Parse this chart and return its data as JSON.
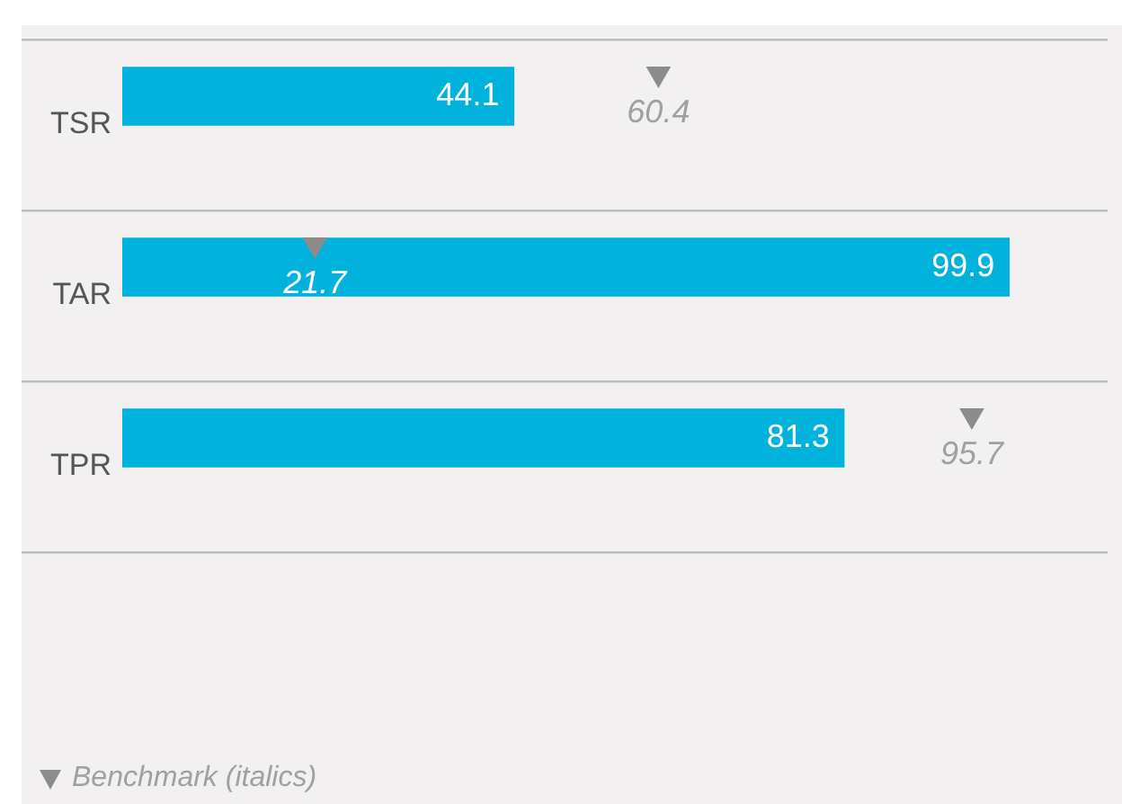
{
  "chart_data": {
    "type": "bar",
    "orientation": "horizontal",
    "categories": [
      "TSR",
      "TAR",
      "TPR"
    ],
    "series": [
      {
        "color": "#00b2dc",
        "values": [
          44.1,
          99.9,
          81.3
        ]
      },
      {
        "type": "scatter",
        "name": "Benchmark (italics)",
        "color": "#8c8c8c",
        "marker": "triangle",
        "values": [
          60.4,
          21.7,
          95.7
        ]
      }
    ],
    "xlim": [
      0,
      111
    ],
    "tick_labels": "y",
    "data_labels": true,
    "grid": "y",
    "legend": "bottom left"
  }
}
